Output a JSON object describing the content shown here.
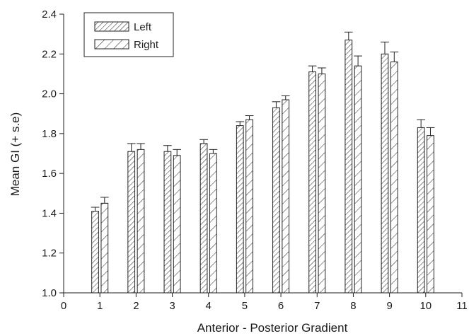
{
  "chart_data": {
    "type": "bar",
    "title": "",
    "xlabel": "Anterior - Posterior Gradient",
    "ylabel": "Mean GI (+ s.e)",
    "xlim": [
      0,
      11
    ],
    "ylim": [
      1.0,
      2.4
    ],
    "x_ticks": [
      "0",
      "1",
      "2",
      "3",
      "4",
      "5",
      "6",
      "7",
      "8",
      "9",
      "10",
      "11"
    ],
    "y_ticks": [
      "1.0",
      "1.2",
      "1.4",
      "1.6",
      "1.8",
      "2.0",
      "2.2",
      "2.4"
    ],
    "grid": false,
    "legend_position": "top-left",
    "categories": [
      1,
      2,
      3,
      4,
      5,
      6,
      7,
      8,
      9,
      10
    ],
    "series": [
      {
        "name": "Left",
        "pattern": "dense-diagonal-hatch",
        "values": [
          1.41,
          1.71,
          1.71,
          1.75,
          1.84,
          1.93,
          2.11,
          2.27,
          2.2,
          1.83
        ],
        "errors": [
          0.02,
          0.04,
          0.03,
          0.02,
          0.02,
          0.03,
          0.03,
          0.04,
          0.06,
          0.04
        ]
      },
      {
        "name": "Right",
        "pattern": "sparse-diagonal-hatch",
        "values": [
          1.45,
          1.72,
          1.69,
          1.7,
          1.87,
          1.97,
          2.1,
          2.14,
          2.16,
          1.79
        ],
        "errors": [
          0.03,
          0.03,
          0.03,
          0.02,
          0.02,
          0.02,
          0.03,
          0.05,
          0.05,
          0.04
        ]
      }
    ]
  }
}
